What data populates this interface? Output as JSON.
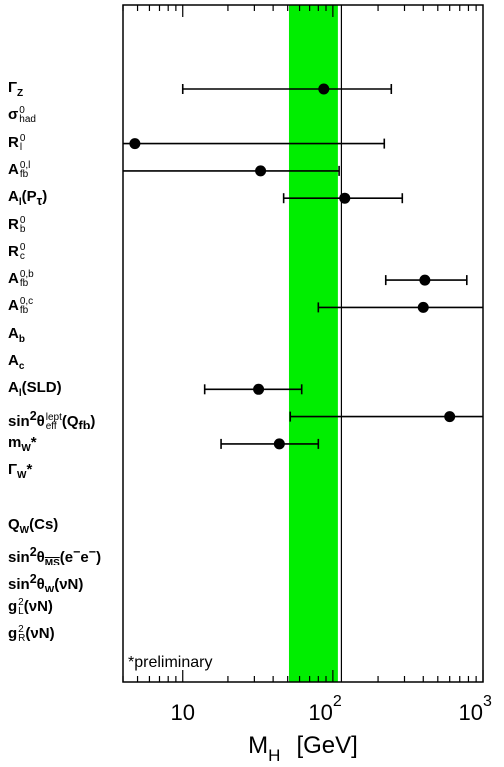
{
  "chart_data": {
    "type": "scatter",
    "x_scale": "log",
    "xlim": [
      4,
      1000
    ],
    "x_ticks": [
      {
        "value": 10,
        "base": "10",
        "exp": ""
      },
      {
        "value": 100,
        "base": "10",
        "exp": "2"
      },
      {
        "value": 1000,
        "base": "10",
        "exp": "3"
      }
    ],
    "xlabel": {
      "main": "M",
      "sub": "H",
      "unit": "[GeV]"
    },
    "band": {
      "from": 51,
      "to": 108,
      "color": "#00ee00"
    },
    "reference_line": {
      "x": 114
    },
    "note": "*preliminary",
    "marker_color": "#000000",
    "rows": [
      {
        "base": "Γ",
        "sub": "Z",
        "sup": "",
        "paren": "",
        "x": 87,
        "low": 10,
        "high": 245
      },
      {
        "base": "σ",
        "sub": "had",
        "sup": "0",
        "paren": "",
        "x": null,
        "low": null,
        "high": null
      },
      {
        "base": "R",
        "sub": "l",
        "sup": "0",
        "paren": "",
        "x": 4.8,
        "low": 4,
        "high": 220
      },
      {
        "base": "A",
        "sub": "fb",
        "sup": "0,l",
        "paren": "",
        "x": 33,
        "low": 4,
        "high": 110
      },
      {
        "base": "A",
        "sub": "l",
        "sup": "",
        "paren": "(P<sub>τ</sub>)",
        "x": 120,
        "low": 47,
        "high": 290
      },
      {
        "base": "R",
        "sub": "b",
        "sup": "0",
        "paren": "",
        "x": null,
        "low": null,
        "high": null
      },
      {
        "base": "R",
        "sub": "c",
        "sup": "0",
        "paren": "",
        "x": null,
        "low": null,
        "high": null
      },
      {
        "base": "A",
        "sub": "fb",
        "sup": "0,b",
        "paren": "",
        "x": 410,
        "low": 225,
        "high": 780
      },
      {
        "base": "A",
        "sub": "fb",
        "sup": "0,c",
        "paren": "",
        "x": 400,
        "low": 80,
        "high": 1000
      },
      {
        "base": "A",
        "sub": "b",
        "sup": "",
        "paren": "",
        "x": null,
        "low": null,
        "high": null
      },
      {
        "base": "A",
        "sub": "c",
        "sup": "",
        "paren": "",
        "x": null,
        "low": null,
        "high": null
      },
      {
        "base": "A",
        "sub": "l",
        "sup": "",
        "paren": "(SLD)",
        "x": 32,
        "low": 14,
        "high": 62
      },
      {
        "base": "sin<sup>2</sup>θ",
        "sub": "eff",
        "sup": "lept",
        "paren": "(Q<sub>fb</sub>)",
        "x": 600,
        "low": 52,
        "high": 1000
      },
      {
        "base": "m",
        "sub": "W",
        "sup": "",
        "paren": "*",
        "x": 44,
        "low": 18,
        "high": 80
      },
      {
        "base": "Γ",
        "sub": "W",
        "sup": "",
        "paren": "*",
        "x": null,
        "low": null,
        "high": null
      },
      {
        "base": "",
        "sub": "",
        "sup": "",
        "paren": "",
        "x": null,
        "low": null,
        "high": null
      },
      {
        "base": "Q",
        "sub": "W",
        "sup": "",
        "paren": "(Cs)",
        "x": null,
        "low": null,
        "high": null
      },
      {
        "base": "sin<sup>2</sup>θ",
        "sub": "MS",
        "sup": "",
        "paren": "(e<sup>−</sup>e<sup>−</sup>)",
        "overline_sub": true,
        "x": null,
        "low": null,
        "high": null
      },
      {
        "base": "sin<sup>2</sup>θ",
        "sub": "W",
        "sup": "",
        "paren": "(νN)",
        "x": null,
        "low": null,
        "high": null
      },
      {
        "base": "g",
        "sub": "L",
        "sup": "2",
        "paren": "(νN)",
        "x": null,
        "low": null,
        "high": null
      },
      {
        "base": "g",
        "sub": "R",
        "sup": "2",
        "paren": "(νN)",
        "x": null,
        "low": null,
        "high": null
      }
    ]
  }
}
